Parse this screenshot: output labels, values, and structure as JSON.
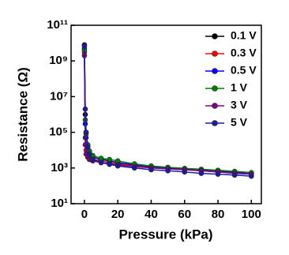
{
  "chart_data": {
    "type": "line",
    "xlabel": "Pressure (kPa)",
    "ylabel": "Resistance (Ω)",
    "x": [
      0,
      0.5,
      1,
      2,
      3,
      5,
      10,
      15,
      20,
      30,
      40,
      50,
      60,
      70,
      80,
      90,
      100
    ],
    "xlim": [
      -8,
      106
    ],
    "xticks": [
      0,
      20,
      40,
      60,
      80,
      100
    ],
    "ylim": [
      10,
      100000000000
    ],
    "yscale": "log",
    "yticks": [
      {
        "value": 10,
        "label": "10¹"
      },
      {
        "value": 1000,
        "label": "10³"
      },
      {
        "value": 100000,
        "label": "10⁵"
      },
      {
        "value": 10000000,
        "label": "10⁷"
      },
      {
        "value": 1000000000,
        "label": "10⁹"
      },
      {
        "value": 100000000000,
        "label": "10¹¹"
      }
    ],
    "legend": "upper right",
    "series": [
      {
        "name": "0.1 V",
        "color": "#000000",
        "values": [
          8000000000,
          1000000,
          100000,
          20000,
          8000,
          4000,
          3000,
          2500,
          2000,
          1500,
          1200,
          1000,
          900,
          800,
          700,
          600,
          500
        ]
      },
      {
        "name": "0.3 V",
        "color": "#ff0000",
        "values": [
          3000000000,
          50000,
          10000,
          6000,
          4000,
          3000,
          2500,
          2000,
          1700,
          1300,
          1100,
          900,
          800,
          700,
          600,
          550,
          500
        ]
      },
      {
        "name": "0.5 V",
        "color": "#0000ff",
        "values": [
          5000000000,
          300000,
          50000,
          15000,
          7000,
          4000,
          3000,
          2500,
          2000,
          1500,
          1200,
          1000,
          900,
          800,
          700,
          600,
          500
        ]
      },
      {
        "name": "1 V",
        "color": "#008000",
        "values": [
          4000000000,
          500000,
          80000,
          20000,
          9000,
          5000,
          3500,
          3000,
          2500,
          1700,
          1300,
          1100,
          950,
          850,
          750,
          650,
          550
        ]
      },
      {
        "name": "3 V",
        "color": "#800080",
        "values": [
          2000000000,
          20000,
          6000,
          4000,
          3000,
          2500,
          2000,
          1700,
          1500,
          1200,
          1000,
          900,
          800,
          700,
          600,
          500,
          450
        ]
      },
      {
        "name": "5 V",
        "color": "#1a1aa6",
        "values": [
          7000000000,
          2000000,
          100000,
          15000,
          6000,
          3000,
          2000,
          1600,
          1300,
          1000,
          800,
          700,
          600,
          500,
          450,
          400,
          350
        ]
      }
    ]
  }
}
